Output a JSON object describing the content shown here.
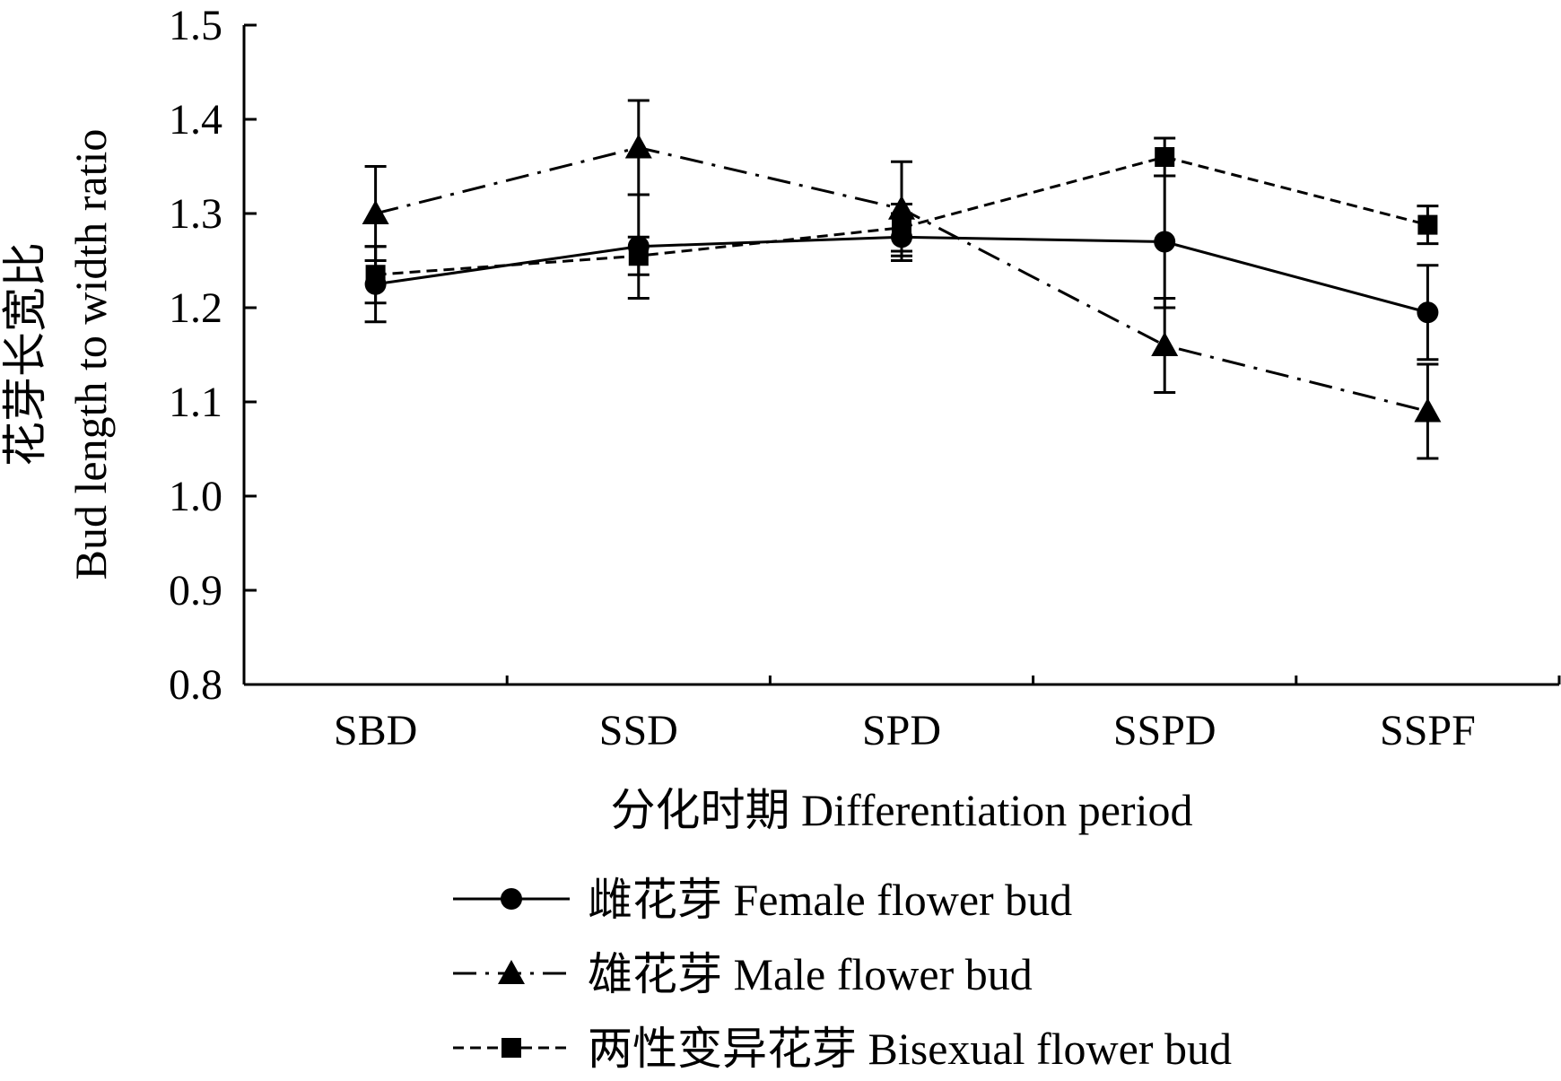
{
  "chart_data": {
    "type": "line",
    "xlabel": "分化时期  Differentiation period",
    "ylabel_cn": "花芽长宽比",
    "ylabel_en": "Bud length to width ratio",
    "categories": [
      "SBD",
      "SSD",
      "SPD",
      "SSPD",
      "SSPF"
    ],
    "ylim": [
      0.8,
      1.5
    ],
    "yticks": [
      "0.8",
      "0.9",
      "1.0",
      "1.1",
      "1.2",
      "1.3",
      "1.4",
      "1.5"
    ],
    "grid": false,
    "legend_position": "bottom-center",
    "series": [
      {
        "name": "雌花芽  Female flower bud",
        "marker": "circle",
        "line_style": "solid",
        "values": [
          1.225,
          1.265,
          1.275,
          1.27,
          1.195
        ],
        "errors": [
          0.04,
          0.055,
          0.025,
          0.07,
          0.05
        ],
        "color": "#000000"
      },
      {
        "name": "雄花芽  Male flower bud",
        "marker": "triangle",
        "line_style": "dash-dot",
        "values": [
          1.3,
          1.37,
          1.305,
          1.16,
          1.09
        ],
        "errors": [
          0.05,
          0.05,
          0.05,
          0.05,
          0.05
        ],
        "color": "#000000"
      },
      {
        "name": "两性变异花芽  Bisexual flower bud",
        "marker": "square",
        "line_style": "dashed",
        "values": [
          1.235,
          1.255,
          1.285,
          1.36,
          1.288
        ],
        "errors": [
          0.03,
          0.02,
          0.025,
          0.02,
          0.02
        ],
        "color": "#000000"
      }
    ]
  }
}
